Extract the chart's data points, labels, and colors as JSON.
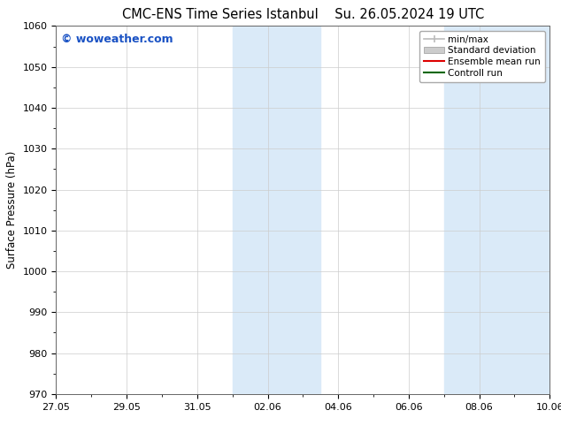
{
  "title_left": "CMC-ENS Time Series Istanbul",
  "title_right": "Su. 26.05.2024 19 UTC",
  "ylabel": "Surface Pressure (hPa)",
  "ylim": [
    970,
    1060
  ],
  "yticks": [
    970,
    980,
    990,
    1000,
    1010,
    1020,
    1030,
    1040,
    1050,
    1060
  ],
  "xlim": [
    0,
    14
  ],
  "xtick_labels": [
    "27.05",
    "29.05",
    "31.05",
    "02.06",
    "04.06",
    "06.06",
    "08.06",
    "10.06"
  ],
  "xtick_positions": [
    0,
    2,
    4,
    6,
    8,
    10,
    12,
    14
  ],
  "shaded_bands": [
    {
      "x_start": 5.0,
      "x_end": 7.5
    },
    {
      "x_start": 11.0,
      "x_end": 14.0
    }
  ],
  "shaded_color": "#daeaf8",
  "watermark_text": "© woweather.com",
  "watermark_color": "#1a52c4",
  "legend_entries": [
    {
      "label": "min/max",
      "color": "#bbbbbb",
      "style": "minmax"
    },
    {
      "label": "Standard deviation",
      "color": "#cccccc",
      "style": "band"
    },
    {
      "label": "Ensemble mean run",
      "color": "#dd0000",
      "style": "line"
    },
    {
      "label": "Controll run",
      "color": "#006600",
      "style": "line"
    }
  ],
  "bg_color": "#ffffff",
  "grid_color": "#cccccc",
  "title_fontsize": 10.5,
  "label_fontsize": 8.5,
  "tick_fontsize": 8,
  "watermark_fontsize": 9,
  "legend_fontsize": 7.5
}
